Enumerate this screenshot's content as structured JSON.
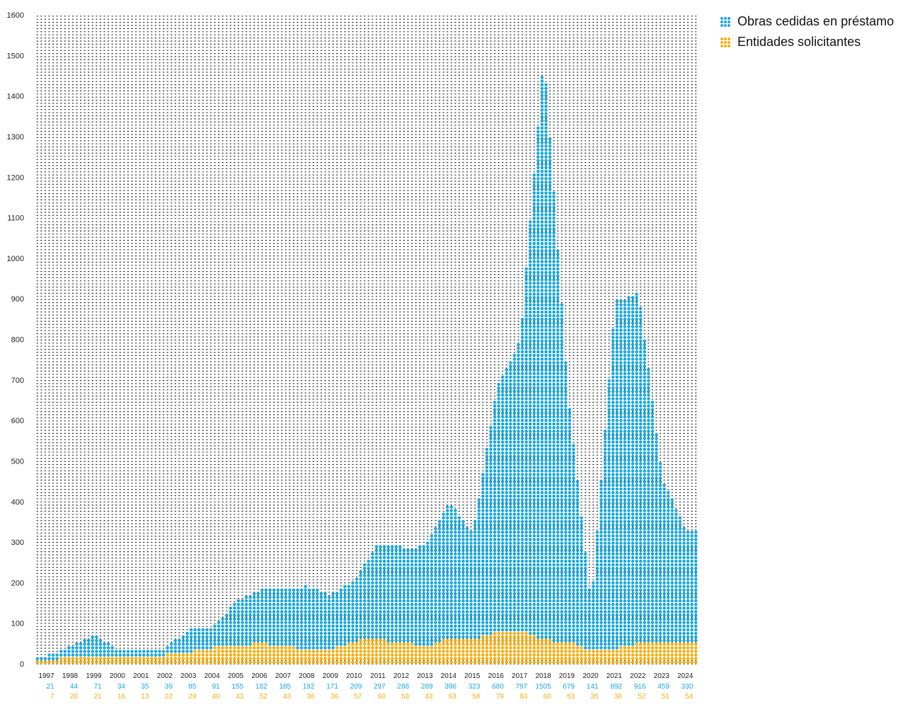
{
  "chart_data": {
    "type": "bar",
    "style": "dot-matrix",
    "title": "",
    "xlabel": "",
    "ylabel": "",
    "ylim": [
      0,
      1600
    ],
    "yticks": [
      0,
      100,
      200,
      300,
      400,
      500,
      600,
      700,
      800,
      900,
      1000,
      1100,
      1200,
      1300,
      1400,
      1500,
      1600
    ],
    "grid": true,
    "legend_position": "top-right",
    "categories": [
      "1997",
      "1998",
      "1999",
      "2000",
      "2001",
      "2002",
      "2003",
      "2004",
      "2005",
      "2006",
      "2007",
      "2008",
      "2009",
      "2010",
      "2011",
      "2012",
      "2013",
      "2014",
      "2015",
      "2016",
      "2017",
      "2018",
      "2019",
      "2020",
      "2021",
      "2022",
      "2023",
      "2024"
    ],
    "series": [
      {
        "name": "Obras cedidas en préstamo",
        "color": "#1aa7dd",
        "values": [
          21,
          44,
          71,
          34,
          35,
          39,
          85,
          91,
          155,
          182,
          185,
          192,
          171,
          209,
          297,
          288,
          289,
          396,
          323,
          680,
          797,
          1505,
          679,
          141,
          892,
          916,
          459,
          330
        ]
      },
      {
        "name": "Entidades solicitantes",
        "color": "#f5ad12",
        "values": [
          7,
          20,
          21,
          16,
          13,
          22,
          29,
          40,
          43,
          52,
          43,
          36,
          36,
          57,
          60,
          53,
          43,
          63,
          58,
          79,
          83,
          60,
          53,
          35,
          36,
          52,
          51,
          54
        ]
      }
    ]
  },
  "colors": {
    "grid_dot": "#2a2a2a",
    "blue": "#1aa7dd",
    "orange": "#f5ad12",
    "text": "#222222"
  }
}
